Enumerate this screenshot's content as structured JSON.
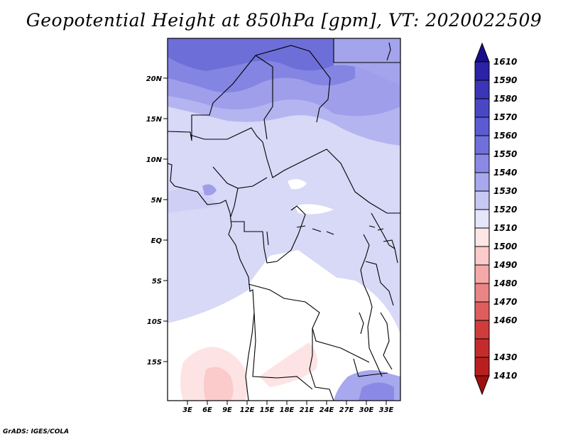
{
  "title": "Geopotential Height at 850hPa [gpm], VT: 2020022509",
  "credit": "GrADS: IGES/COLA",
  "map": {
    "lat_ticks": [
      "20N",
      "15N",
      "10N",
      "5N",
      "EQ",
      "5S",
      "10S",
      "15S"
    ],
    "lon_ticks": [
      "3E",
      "6E",
      "9E",
      "12E",
      "15E",
      "18E",
      "21E",
      "24E",
      "27E",
      "30E",
      "33E"
    ]
  },
  "colorbar": {
    "levels": [
      "1610",
      "1590",
      "1580",
      "1570",
      "1560",
      "1550",
      "1540",
      "1530",
      "1520",
      "1510",
      "1500",
      "1490",
      "1480",
      "1470",
      "1460",
      "1430",
      "1410"
    ],
    "colors": [
      "#1a0d8c",
      "#2b22a6",
      "#3b35b8",
      "#4a47c5",
      "#5b5bd2",
      "#6f70dc",
      "#8a8ae6",
      "#a8a8ee",
      "#c8c8f5",
      "#e6e6fb",
      "#fde6e6",
      "#fbcaca",
      "#f4a9a9",
      "#ea8585",
      "#de5e5e",
      "#d03c3c",
      "#b91f1f",
      "#a01010"
    ]
  }
}
